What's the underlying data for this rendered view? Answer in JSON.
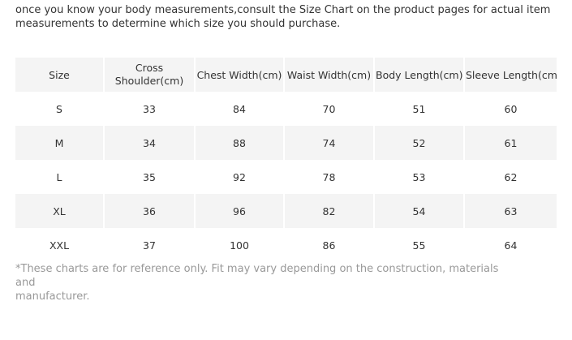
{
  "intro": {
    "line1": "once you know your body measurements,consult the Size Chart on the product pages for actual item",
    "line2": "measurements to determine which size you should purchase."
  },
  "table": {
    "headers": [
      "Size",
      "Cross Shoulder(cm)",
      "Chest Width(cm)",
      "Waist Width(cm)",
      "Body Length(cm)",
      "Sleeve Length(cm)"
    ],
    "rows": [
      [
        "S",
        "33",
        "84",
        "70",
        "51",
        "60"
      ],
      [
        "M",
        "34",
        "88",
        "74",
        "52",
        "61"
      ],
      [
        "L",
        "35",
        "92",
        "78",
        "53",
        "62"
      ],
      [
        "XL",
        "36",
        "96",
        "82",
        "54",
        "63"
      ],
      [
        "XXL",
        "37",
        "100",
        "86",
        "55",
        "64"
      ]
    ]
  },
  "note": {
    "line1": "*These charts are for reference only. Fit may vary depending on the construction, materials and",
    "line2": "manufacturer."
  },
  "colors": {
    "shaded_row": "#f4f4f4",
    "text": "#333333",
    "note_text": "#999999"
  }
}
